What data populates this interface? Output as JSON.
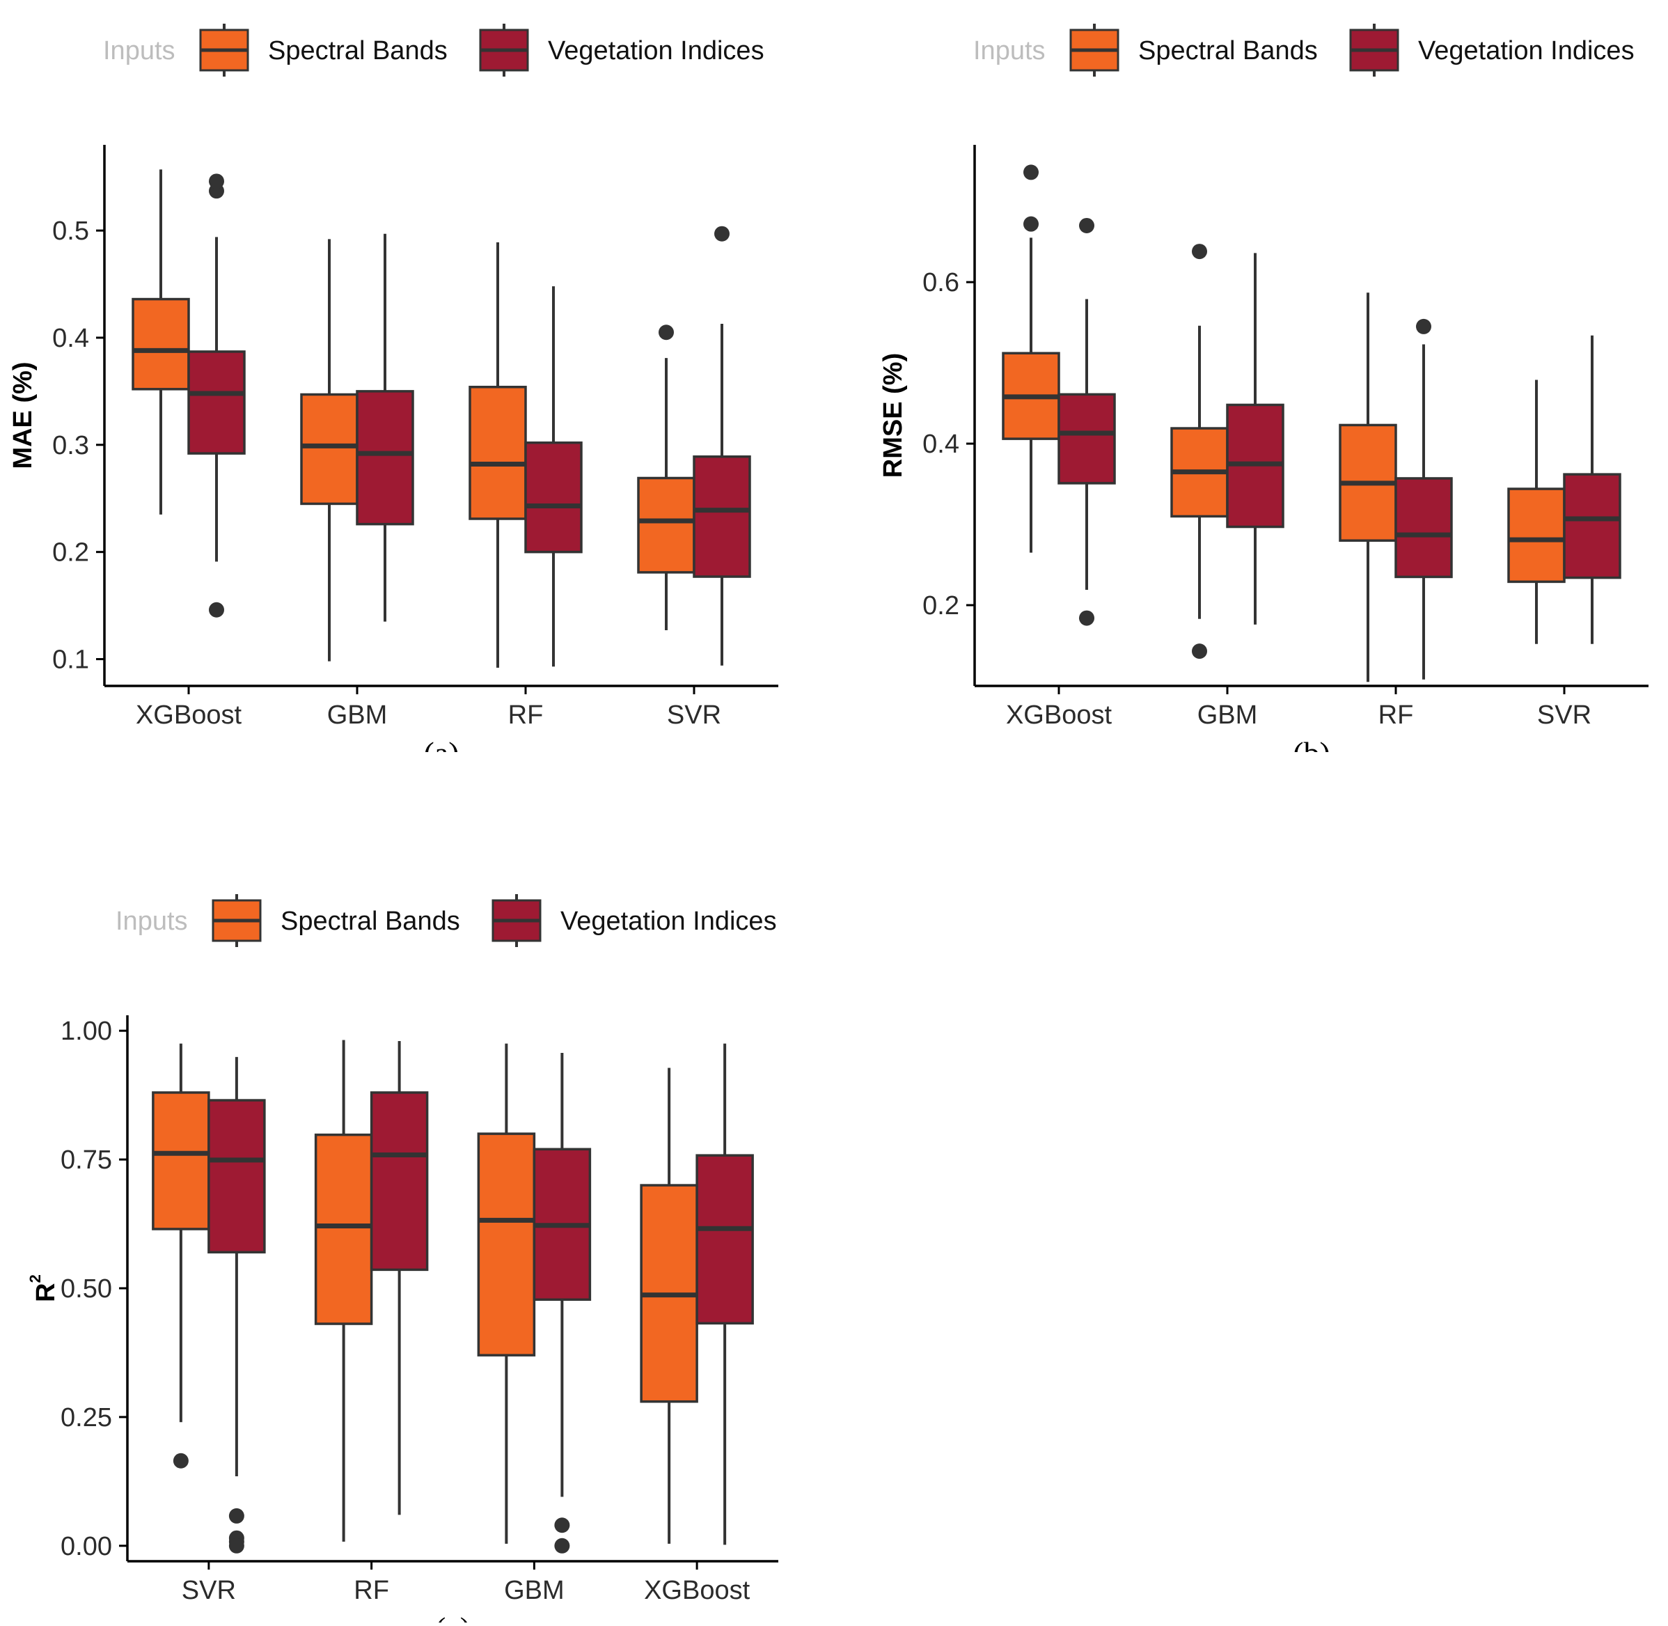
{
  "figure": {
    "legend_title": "Inputs",
    "colors": {
      "spectral": "#f26722",
      "vegetation": "#9e1a33",
      "line": "#333333",
      "axis": "#000000"
    }
  },
  "chart_data": [
    {
      "id": "a",
      "type": "boxplot",
      "panel_label": "(a)",
      "ylabel": "MAE (%)",
      "ylabel_sup": "",
      "ylim": [
        0.075,
        0.58
      ],
      "yticks": [
        0.1,
        0.2,
        0.3,
        0.4,
        0.5
      ],
      "ytick_labels": [
        "0.1",
        "0.2",
        "0.3",
        "0.4",
        "0.5"
      ],
      "categories": [
        "XGBoost",
        "GBM",
        "RF",
        "SVR"
      ],
      "legend": [
        "Spectral Bands",
        "Vegetation Indices"
      ],
      "series": [
        {
          "name": "Spectral Bands",
          "boxes": [
            {
              "whisker_low": 0.235,
              "q1": 0.352,
              "median": 0.388,
              "q3": 0.436,
              "whisker_high": 0.557,
              "outliers": []
            },
            {
              "whisker_low": 0.098,
              "q1": 0.245,
              "median": 0.299,
              "q3": 0.347,
              "whisker_high": 0.492,
              "outliers": []
            },
            {
              "whisker_low": 0.092,
              "q1": 0.231,
              "median": 0.282,
              "q3": 0.354,
              "whisker_high": 0.489,
              "outliers": []
            },
            {
              "whisker_low": 0.127,
              "q1": 0.181,
              "median": 0.229,
              "q3": 0.269,
              "whisker_high": 0.381,
              "outliers": [
                0.405
              ]
            }
          ]
        },
        {
          "name": "Vegetation Indices",
          "boxes": [
            {
              "whisker_low": 0.191,
              "q1": 0.292,
              "median": 0.348,
              "q3": 0.387,
              "whisker_high": 0.494,
              "outliers": [
                0.146,
                0.537,
                0.546
              ]
            },
            {
              "whisker_low": 0.135,
              "q1": 0.226,
              "median": 0.292,
              "q3": 0.35,
              "whisker_high": 0.497,
              "outliers": []
            },
            {
              "whisker_low": 0.093,
              "q1": 0.2,
              "median": 0.243,
              "q3": 0.302,
              "whisker_high": 0.448,
              "outliers": []
            },
            {
              "whisker_low": 0.094,
              "q1": 0.177,
              "median": 0.239,
              "q3": 0.289,
              "whisker_high": 0.413,
              "outliers": [
                0.497
              ]
            }
          ]
        }
      ]
    },
    {
      "id": "b",
      "type": "boxplot",
      "panel_label": "(b)",
      "ylabel": "RMSE (%)",
      "ylabel_sup": "",
      "ylim": [
        0.1,
        0.77
      ],
      "yticks": [
        0.2,
        0.4,
        0.6
      ],
      "ytick_labels": [
        "0.2",
        "0.4",
        "0.6"
      ],
      "categories": [
        "XGBoost",
        "GBM",
        "RF",
        "SVR"
      ],
      "legend": [
        "Spectral Bands",
        "Vegetation Indices"
      ],
      "series": [
        {
          "name": "Spectral Bands",
          "boxes": [
            {
              "whisker_low": 0.265,
              "q1": 0.406,
              "median": 0.458,
              "q3": 0.512,
              "whisker_high": 0.655,
              "outliers": [
                0.672,
                0.736
              ]
            },
            {
              "whisker_low": 0.183,
              "q1": 0.31,
              "median": 0.365,
              "q3": 0.419,
              "whisker_high": 0.546,
              "outliers": [
                0.143,
                0.638
              ]
            },
            {
              "whisker_low": 0.105,
              "q1": 0.28,
              "median": 0.351,
              "q3": 0.423,
              "whisker_high": 0.587,
              "outliers": []
            },
            {
              "whisker_low": 0.152,
              "q1": 0.229,
              "median": 0.281,
              "q3": 0.344,
              "whisker_high": 0.479,
              "outliers": []
            }
          ]
        },
        {
          "name": "Vegetation Indices",
          "boxes": [
            {
              "whisker_low": 0.219,
              "q1": 0.351,
              "median": 0.413,
              "q3": 0.461,
              "whisker_high": 0.579,
              "outliers": [
                0.184,
                0.67
              ]
            },
            {
              "whisker_low": 0.176,
              "q1": 0.297,
              "median": 0.375,
              "q3": 0.448,
              "whisker_high": 0.636,
              "outliers": []
            },
            {
              "whisker_low": 0.108,
              "q1": 0.235,
              "median": 0.287,
              "q3": 0.357,
              "whisker_high": 0.523,
              "outliers": [
                0.545
              ]
            },
            {
              "whisker_low": 0.152,
              "q1": 0.234,
              "median": 0.307,
              "q3": 0.362,
              "whisker_high": 0.534,
              "outliers": []
            }
          ]
        }
      ]
    },
    {
      "id": "c",
      "type": "boxplot",
      "panel_label": "(c)",
      "ylabel": "R",
      "ylabel_sup": "2",
      "ylim": [
        -0.03,
        1.03
      ],
      "yticks": [
        0.0,
        0.25,
        0.5,
        0.75,
        1.0
      ],
      "ytick_labels": [
        "0.00",
        "0.25",
        "0.50",
        "0.75",
        "1.00"
      ],
      "categories": [
        "SVR",
        "RF",
        "GBM",
        "XGBoost"
      ],
      "legend": [
        "Spectral Bands",
        "Vegetation Indices"
      ],
      "series": [
        {
          "name": "Spectral Bands",
          "boxes": [
            {
              "whisker_low": 0.24,
              "q1": 0.615,
              "median": 0.762,
              "q3": 0.88,
              "whisker_high": 0.975,
              "outliers": [
                0.165
              ]
            },
            {
              "whisker_low": 0.008,
              "q1": 0.431,
              "median": 0.621,
              "q3": 0.798,
              "whisker_high": 0.982,
              "outliers": []
            },
            {
              "whisker_low": 0.004,
              "q1": 0.37,
              "median": 0.632,
              "q3": 0.8,
              "whisker_high": 0.975,
              "outliers": []
            },
            {
              "whisker_low": 0.004,
              "q1": 0.28,
              "median": 0.487,
              "q3": 0.7,
              "whisker_high": 0.928,
              "outliers": []
            }
          ]
        },
        {
          "name": "Vegetation Indices",
          "boxes": [
            {
              "whisker_low": 0.135,
              "q1": 0.57,
              "median": 0.749,
              "q3": 0.865,
              "whisker_high": 0.949,
              "outliers": [
                0.058,
                0.015,
                0.008,
                0.0
              ]
            },
            {
              "whisker_low": 0.06,
              "q1": 0.536,
              "median": 0.759,
              "q3": 0.88,
              "whisker_high": 0.98,
              "outliers": []
            },
            {
              "whisker_low": 0.095,
              "q1": 0.478,
              "median": 0.622,
              "q3": 0.77,
              "whisker_high": 0.957,
              "outliers": [
                0.04,
                0.0
              ]
            },
            {
              "whisker_low": 0.002,
              "q1": 0.432,
              "median": 0.616,
              "q3": 0.758,
              "whisker_high": 0.975,
              "outliers": []
            }
          ]
        }
      ]
    }
  ]
}
